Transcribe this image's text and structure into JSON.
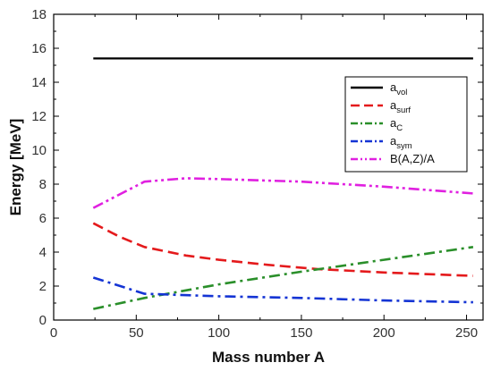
{
  "chart_data": {
    "type": "line",
    "xlabel": "Mass number A",
    "ylabel": "Energy [MeV]",
    "xlim": [
      0,
      260
    ],
    "ylim": [
      0,
      18
    ],
    "xticks": [
      0,
      50,
      100,
      150,
      200,
      250
    ],
    "yticks": [
      0,
      2,
      4,
      6,
      8,
      10,
      12,
      14,
      16,
      18
    ],
    "legend_position": "right",
    "series": [
      {
        "name": "a_vol",
        "label_base": "a",
        "label_sub": "vol",
        "color": "#000000",
        "dash": "solid",
        "x": [
          24,
          254
        ],
        "y": [
          15.4,
          15.4
        ]
      },
      {
        "name": "a_surf",
        "label_base": "a",
        "label_sub": "surf",
        "color": "#e41a1c",
        "dash": "dash",
        "x": [
          24,
          40,
          55,
          80,
          100,
          130,
          160,
          200,
          254
        ],
        "y": [
          5.7,
          4.9,
          4.3,
          3.8,
          3.55,
          3.25,
          3.0,
          2.8,
          2.6
        ]
      },
      {
        "name": "a_C",
        "label_base": "a",
        "label_sub": "C",
        "color": "#2a8f2a",
        "dash": "dashdot",
        "x": [
          24,
          55,
          100,
          150,
          200,
          254
        ],
        "y": [
          0.65,
          1.3,
          2.1,
          2.85,
          3.55,
          4.3
        ]
      },
      {
        "name": "a_sym",
        "label_base": "a",
        "label_sub": "sym",
        "color": "#1434d4",
        "dash": "dashdot",
        "x": [
          24,
          55,
          100,
          150,
          200,
          254
        ],
        "y": [
          2.5,
          1.55,
          1.4,
          1.3,
          1.15,
          1.05
        ]
      },
      {
        "name": "B(A,Z)/A",
        "label_base": "B(A,Z)/A",
        "label_sub": "",
        "color": "#e020e0",
        "dash": "dashdotdot",
        "x": [
          24,
          55,
          80,
          100,
          150,
          200,
          254
        ],
        "y": [
          6.6,
          8.15,
          8.35,
          8.3,
          8.15,
          7.85,
          7.45
        ]
      }
    ]
  }
}
